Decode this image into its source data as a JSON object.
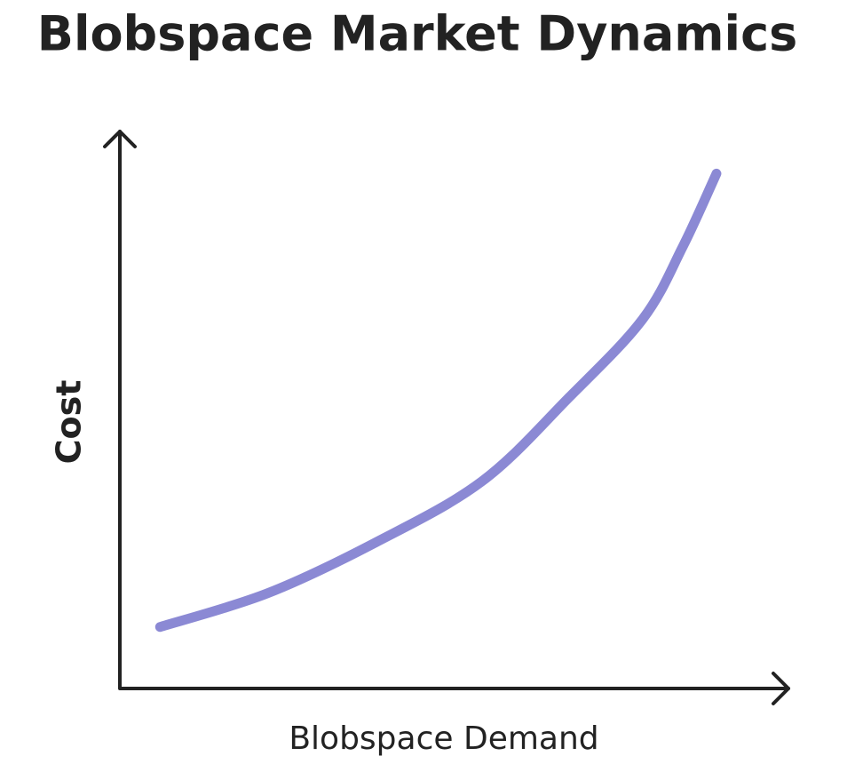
{
  "chart_data": {
    "type": "line",
    "title": "Blobspace Market Dynamics",
    "x_label": "Blobspace Demand",
    "y_label": "Cost",
    "xlim": [
      0,
      100
    ],
    "ylim": [
      0,
      100
    ],
    "x": [
      6,
      22,
      38,
      54,
      67,
      78,
      84,
      89
    ],
    "series": [
      {
        "color": "#8b89d4",
        "values": [
          11,
          17,
          26,
          37,
          52,
          66,
          79,
          92
        ]
      }
    ]
  }
}
